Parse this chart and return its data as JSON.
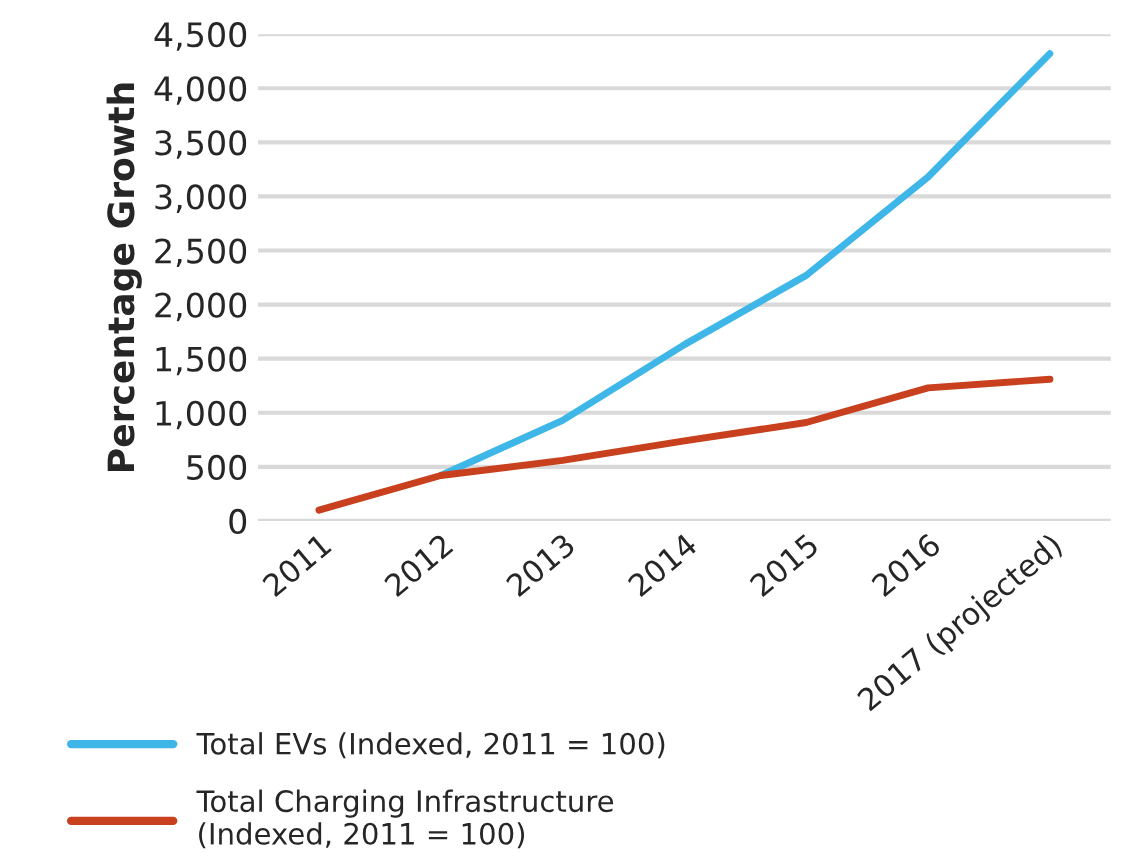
{
  "chart_data": {
    "type": "line",
    "ylabel": "Percentage Growth",
    "categories": [
      "2011",
      "2012",
      "2013",
      "2014",
      "2015",
      "2016",
      "2017 (projected)"
    ],
    "series": [
      {
        "name": "Total EVs (Indexed, 2011 = 100)",
        "color": "#3fb6e8",
        "values": [
          null,
          420,
          930,
          1630,
          2270,
          3180,
          4320
        ]
      },
      {
        "name": "Total Charging Infrastructure (Indexed, 2011 = 100)",
        "color": "#c8401e",
        "values": [
          100,
          420,
          560,
          740,
          910,
          1230,
          1310
        ]
      }
    ],
    "ylim": [
      0,
      4500
    ],
    "yticks": [
      {
        "value": 0,
        "label": "0"
      },
      {
        "value": 500,
        "label": "500"
      },
      {
        "value": 1000,
        "label": "1,000"
      },
      {
        "value": 1500,
        "label": "1,500"
      },
      {
        "value": 2000,
        "label": "2,000"
      },
      {
        "value": 2500,
        "label": "2,500"
      },
      {
        "value": 3000,
        "label": "3,000"
      },
      {
        "value": 3500,
        "label": "3,500"
      },
      {
        "value": 4000,
        "label": "4,000"
      },
      {
        "value": 4500,
        "label": "4,500"
      }
    ],
    "grid": "y",
    "legend": "bottom",
    "marker": "none",
    "line_style": "solid"
  }
}
